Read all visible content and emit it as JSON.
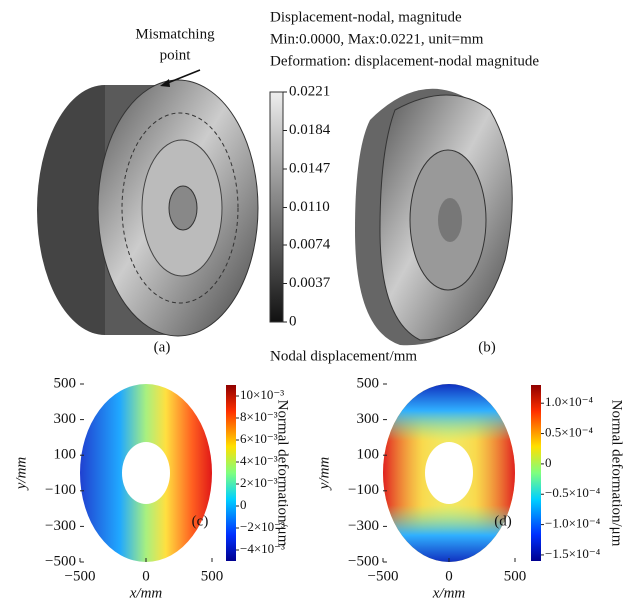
{
  "panel_a": {
    "annotation": [
      "Mismatching",
      "point"
    ],
    "label": "(a)"
  },
  "panel_b": {
    "label": "(b)",
    "header": [
      "Displacement-nodal, magnitude",
      "Min:0.0000, Max:0.0221, unit=mm",
      "Deformation: displacement-nodal magnitude"
    ],
    "colorbar": {
      "title": "Nodal displacement/mm",
      "clim": [
        0,
        0.0221
      ],
      "ticks": [
        0,
        0.0037,
        0.0074,
        {
          "value": 0.011,
          "label": "0.0110"
        },
        0.0147,
        0.0184,
        0.0221
      ]
    }
  },
  "chart_data": [
    {
      "type": "heatmap",
      "panel_label": "(c)",
      "x_label": "x/mm",
      "y_label": "y/mm",
      "xlim": [
        -500,
        500
      ],
      "xticks": [
        {
          "value": -500,
          "label": "−500"
        },
        0,
        500
      ],
      "ylim": [
        -500,
        500
      ],
      "yticks": [
        500,
        300,
        100,
        {
          "value": -100,
          "label": "−100"
        },
        {
          "value": -300,
          "label": "−300"
        },
        {
          "value": -500,
          "label": "−500"
        }
      ],
      "colorbar_label": "Normal deformation/μm",
      "clim": [
        -0.005,
        0.011
      ],
      "cticks": [
        {
          "value": 0.01,
          "label": "10×10⁻³"
        },
        {
          "value": 0.008,
          "label": "8×10⁻³"
        },
        {
          "value": 0.006,
          "label": "6×10⁻³"
        },
        {
          "value": 0.004,
          "label": "4×10⁻³"
        },
        {
          "value": 0.002,
          "label": "2×10⁻³"
        },
        0,
        {
          "value": -0.002,
          "label": "−2×10⁻³"
        },
        {
          "value": -0.004,
          "label": "−4×10⁻³"
        }
      ]
    },
    {
      "type": "heatmap",
      "panel_label": "(d)",
      "x_label": "x/mm",
      "y_label": "y/mm",
      "xlim": [
        -500,
        500
      ],
      "xticks": [
        {
          "value": -500,
          "label": "−500"
        },
        0,
        500
      ],
      "ylim": [
        -500,
        500
      ],
      "yticks": [
        500,
        300,
        100,
        {
          "value": -100,
          "label": "−100"
        },
        {
          "value": -300,
          "label": "−300"
        },
        {
          "value": -500,
          "label": "−500"
        }
      ],
      "colorbar_label": "Normal deformation/μm",
      "clim": [
        -0.00016,
        0.00013
      ],
      "cticks": [
        {
          "value": 0.0001,
          "label": "1.0×10⁻⁴"
        },
        {
          "value": 5e-05,
          "label": "0.5×10⁻⁴"
        },
        0,
        {
          "value": -5e-05,
          "label": "−0.5×10⁻⁴"
        },
        {
          "value": -0.0001,
          "label": "−1.0×10⁻⁴"
        },
        {
          "value": -0.00015,
          "label": "−1.5×10⁻⁴"
        }
      ]
    }
  ]
}
